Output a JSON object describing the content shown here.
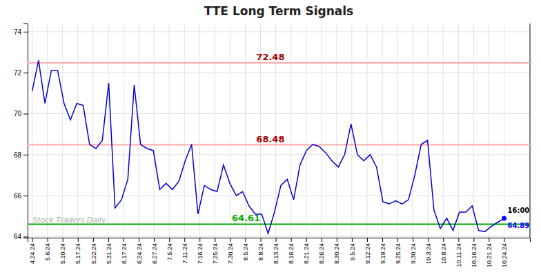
{
  "chart_data": {
    "type": "line",
    "title": "TTE Long Term Signals",
    "color": "#0000cc",
    "grid": true,
    "xlim": [
      -0.3,
      32.7
    ],
    "xticks": [
      {
        "value": 0,
        "label": "4.24.24"
      },
      {
        "value": 1,
        "label": "5.6.24"
      },
      {
        "value": 2,
        "label": "5.10.24"
      },
      {
        "value": 3,
        "label": "5.17.24"
      },
      {
        "value": 4,
        "label": "5.22.24"
      },
      {
        "value": 5,
        "label": "5.31.24"
      },
      {
        "value": 6,
        "label": "6.17.24"
      },
      {
        "value": 7,
        "label": "6.24.24"
      },
      {
        "value": 8,
        "label": "6.27.24"
      },
      {
        "value": 9,
        "label": "7.5.24"
      },
      {
        "value": 10,
        "label": "7.11.24"
      },
      {
        "value": 11,
        "label": "7.16.24"
      },
      {
        "value": 12,
        "label": "7.25.24"
      },
      {
        "value": 13,
        "label": "7.30.24"
      },
      {
        "value": 14,
        "label": "8.5.24"
      },
      {
        "value": 15,
        "label": "8.8.24"
      },
      {
        "value": 16,
        "label": "8.13.24"
      },
      {
        "value": 17,
        "label": "8.16.24"
      },
      {
        "value": 18,
        "label": "8.21.24"
      },
      {
        "value": 19,
        "label": "8.26.24"
      },
      {
        "value": 20,
        "label": "8.30.24"
      },
      {
        "value": 21,
        "label": "9.5.24"
      },
      {
        "value": 22,
        "label": "9.12.24"
      },
      {
        "value": 23,
        "label": "9.19.24"
      },
      {
        "value": 24,
        "label": "9.25.24"
      },
      {
        "value": 25,
        "label": "9.30.24"
      },
      {
        "value": 26,
        "label": "10.3.24"
      },
      {
        "value": 27,
        "label": "10.8.24"
      },
      {
        "value": 28,
        "label": "10.11.24"
      },
      {
        "value": 29,
        "label": "10.16.24"
      },
      {
        "value": 30,
        "label": "10.21.24"
      },
      {
        "value": 31,
        "label": "10.24.24"
      }
    ],
    "ylim": [
      63.95,
      74.4
    ],
    "yticks": [
      64,
      66,
      68,
      70,
      72,
      74
    ],
    "x": [
      0,
      0.4189,
      0.8378,
      1.2568,
      1.6757,
      2.0946,
      2.5135,
      2.9324,
      3.3514,
      3.7703,
      4.1892,
      4.6081,
      5.027,
      5.4459,
      5.8649,
      6.2838,
      6.7027,
      7.1216,
      7.5405,
      7.9595,
      8.3784,
      8.7973,
      9.2162,
      9.6351,
      10.0541,
      10.473,
      10.8919,
      11.3108,
      11.7297,
      12.1486,
      12.5676,
      12.9865,
      13.4054,
      13.8243,
      14.2432,
      14.6622,
      15.0811,
      15.5,
      15.9189,
      16.3378,
      16.7568,
      17.1757,
      17.5946,
      18.0135,
      18.4324,
      18.8514,
      19.2703,
      19.6892,
      20.1081,
      20.527,
      20.9459,
      21.3649,
      21.7838,
      22.2027,
      22.6216,
      23.0405,
      23.4595,
      23.8784,
      24.2973,
      24.7162,
      25.1351,
      25.5541,
      25.973,
      26.3919,
      26.8108,
      27.2297,
      27.6486,
      28.0676,
      28.4865,
      28.9054,
      29.3243,
      29.7432,
      30.1622,
      30.5811,
      31
    ],
    "values": [
      71.1,
      72.6,
      70.5,
      72.1,
      72.1,
      70.5,
      69.7,
      70.5,
      70.4,
      68.5,
      68.3,
      68.7,
      71.5,
      65.4,
      65.8,
      66.8,
      71.4,
      68.5,
      68.3,
      68.2,
      66.3,
      66.6,
      66.3,
      66.7,
      67.7,
      68.5,
      65.1,
      66.5,
      66.3,
      66.2,
      67.5,
      66.6,
      66.0,
      66.2,
      65.5,
      65.1,
      65.1,
      64.15,
      65.2,
      66.5,
      66.8,
      65.8,
      67.5,
      68.2,
      68.5,
      68.4,
      68.1,
      67.7,
      67.4,
      68.0,
      69.5,
      68.0,
      67.7,
      68.0,
      67.4,
      65.7,
      65.6,
      65.75,
      65.6,
      65.8,
      67.0,
      68.5,
      68.7,
      65.3,
      64.4,
      64.9,
      64.3,
      65.2,
      65.2,
      65.5,
      64.3,
      64.25,
      64.5,
      64.7,
      64.89
    ],
    "reference_lines": [
      {
        "value": 72.48,
        "color": "#ffaaaa",
        "label_color": "#aa0000"
      },
      {
        "value": 68.48,
        "color": "#ffaaaa",
        "label_color": "#aa0000"
      },
      {
        "value": 64.61,
        "color": "#00aa00",
        "label_color": "#00aa00"
      }
    ],
    "last_point": {
      "x": 31,
      "y": 64.89,
      "label": "16:00",
      "color": "#0000ff"
    },
    "annotations": [
      {
        "text": "Stock Traders Daily",
        "color": "#aaaaaa"
      }
    ]
  }
}
